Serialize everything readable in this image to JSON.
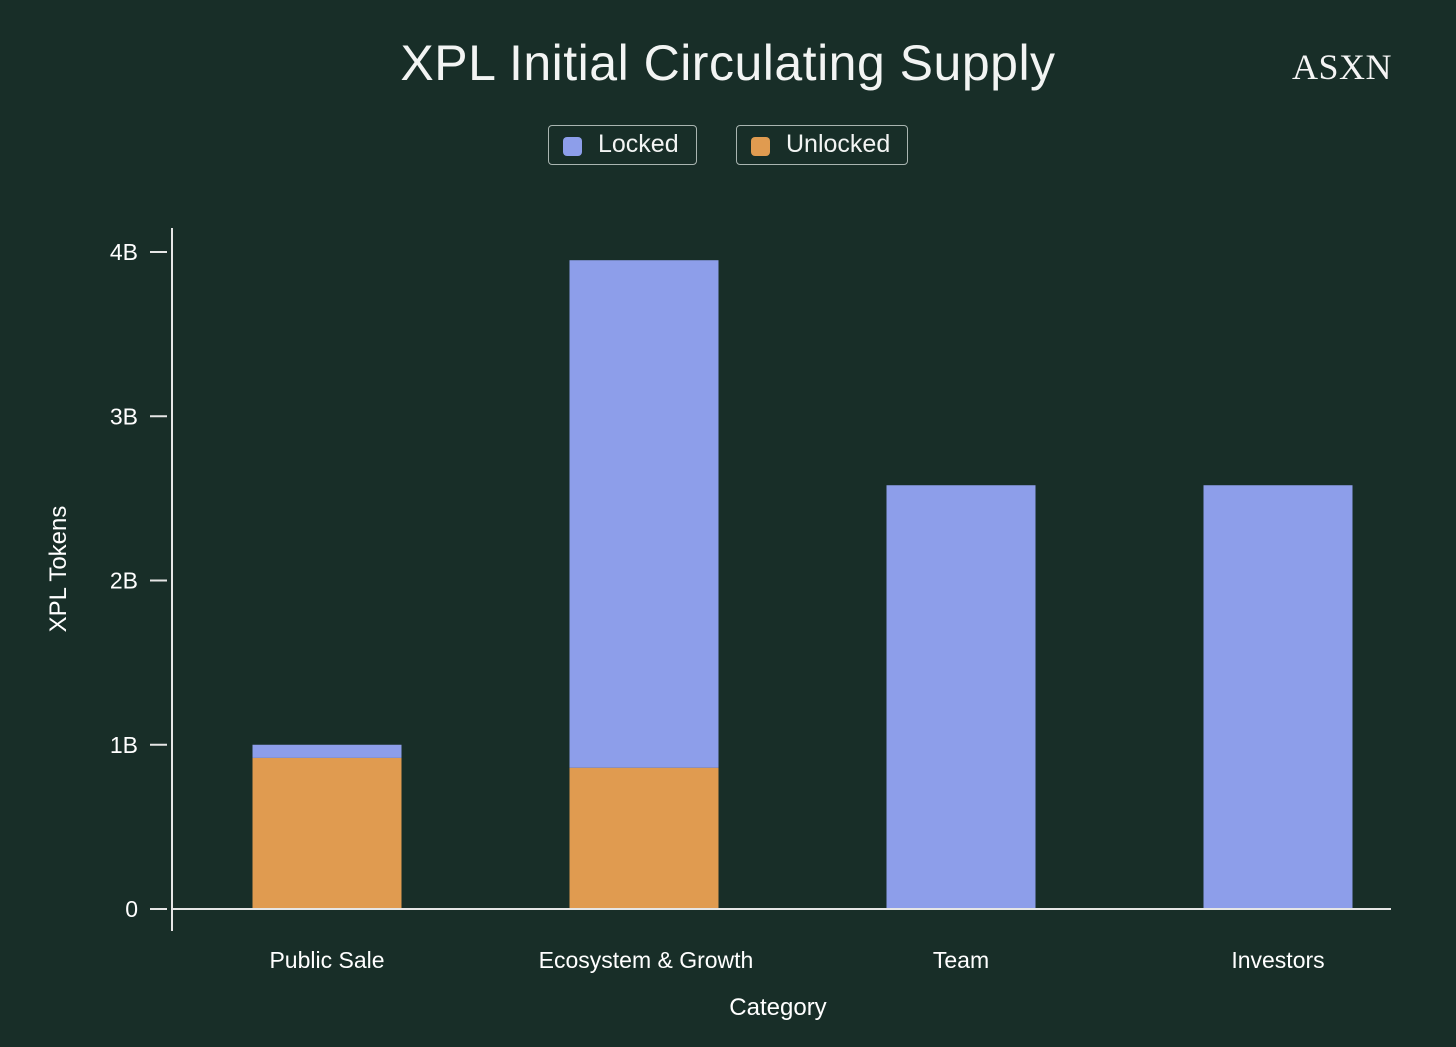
{
  "brand": "ASXN",
  "colors": {
    "background": "#182e28",
    "locked": "#8d9eea",
    "unlocked": "#e09b50",
    "axis": "#e6e6e6"
  },
  "legend": {
    "locked_label": "Locked",
    "unlocked_label": "Unlocked"
  },
  "chart_data": {
    "type": "bar",
    "stacked": true,
    "title": "XPL Initial Circulating Supply",
    "xlabel": "Category",
    "ylabel": "XPL Tokens",
    "categories": [
      "Public Sale",
      "Ecosystem & Growth",
      "Team",
      "Investors"
    ],
    "series": [
      {
        "name": "Unlocked",
        "values": [
          920000000,
          860000000,
          0,
          0
        ]
      },
      {
        "name": "Locked",
        "values": [
          80000000,
          3090000000,
          2580000000,
          2580000000
        ]
      }
    ],
    "ylim": [
      0,
      4000000000
    ],
    "yticks": [
      0,
      1000000000,
      2000000000,
      3000000000,
      4000000000
    ],
    "ytick_labels": [
      "0",
      "1B",
      "2B",
      "3B",
      "4B"
    ],
    "grid": false,
    "legend_position": "top-center"
  }
}
